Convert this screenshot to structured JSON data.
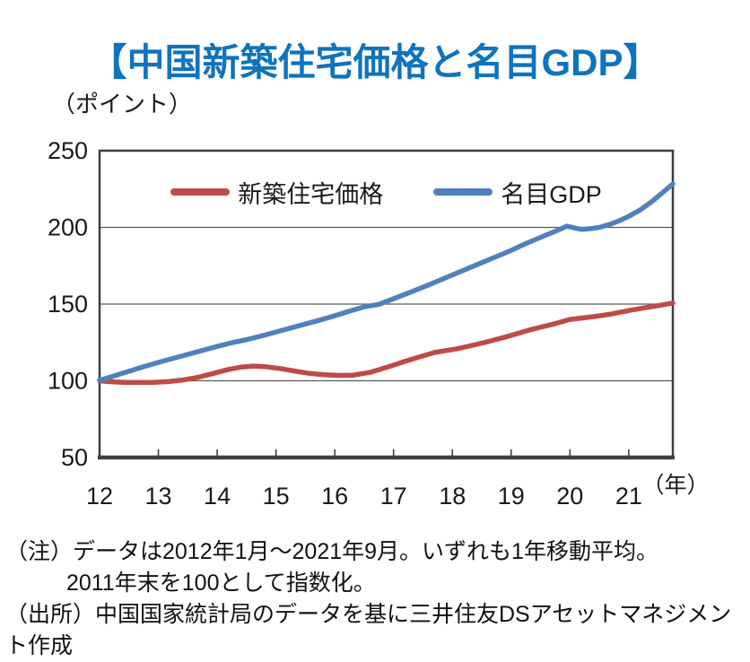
{
  "title": "【中国新築住宅価格と名目GDP】",
  "unit_label": "（ポイント）",
  "year_label": "（年）",
  "notes": {
    "line1": "（注）データは2012年1月～2021年9月。いずれも1年移動平均。",
    "line2": "2011年末を100として指数化。",
    "line3": "（出所）中国国家統計局のデータを基に三井住友DSアセットマネジメント作成"
  },
  "colors": {
    "title": "#0F73BE",
    "housing": "#BE4B48",
    "gdp": "#4F81BD",
    "frame": "#3F3F3F",
    "grid": "#595959",
    "text": "#1a1a1a"
  },
  "chart_data": {
    "type": "line",
    "title": "中国新築住宅価格と名目GDP",
    "xlabel": "年",
    "ylabel": "ポイント",
    "ylim": [
      50,
      250
    ],
    "xlim": [
      12,
      21.75
    ],
    "yticks": [
      50,
      100,
      150,
      200,
      250
    ],
    "xticks": [
      12,
      13,
      14,
      15,
      16,
      17,
      18,
      19,
      20,
      21
    ],
    "grid": "horizontal",
    "legend_position": "top-inside",
    "series": [
      {
        "name": "新築住宅価格",
        "color": "#BE4B48",
        "points": [
          [
            12.0,
            100
          ],
          [
            12.17,
            99.4
          ],
          [
            12.42,
            99.0
          ],
          [
            12.67,
            98.9
          ],
          [
            12.92,
            99.0
          ],
          [
            13.17,
            99.5
          ],
          [
            13.42,
            100.5
          ],
          [
            13.67,
            102.2
          ],
          [
            13.92,
            104.6
          ],
          [
            14.17,
            107.2
          ],
          [
            14.42,
            109.0
          ],
          [
            14.62,
            109.6
          ],
          [
            14.82,
            109.2
          ],
          [
            15.07,
            108.0
          ],
          [
            15.32,
            106.3
          ],
          [
            15.57,
            104.8
          ],
          [
            15.82,
            103.9
          ],
          [
            16.07,
            103.5
          ],
          [
            16.32,
            103.7
          ],
          [
            16.6,
            105.5
          ],
          [
            16.9,
            109.0
          ],
          [
            17.3,
            114.0
          ],
          [
            17.7,
            118.5
          ],
          [
            18.1,
            121.0
          ],
          [
            18.5,
            124.5
          ],
          [
            18.9,
            128.5
          ],
          [
            19.3,
            133.0
          ],
          [
            19.7,
            136.8
          ],
          [
            20.0,
            140.0
          ],
          [
            20.4,
            141.8
          ],
          [
            20.7,
            143.5
          ],
          [
            21.0,
            145.8
          ],
          [
            21.3,
            147.8
          ],
          [
            21.55,
            149.3
          ],
          [
            21.75,
            150.7
          ]
        ]
      },
      {
        "name": "名目GDP",
        "color": "#4F81BD",
        "points": [
          [
            12.0,
            100.3
          ],
          [
            12.25,
            103.2
          ],
          [
            12.5,
            106.2
          ],
          [
            12.75,
            109.2
          ],
          [
            13.0,
            112.0
          ],
          [
            13.25,
            114.6
          ],
          [
            13.5,
            117.2
          ],
          [
            13.75,
            119.8
          ],
          [
            14.0,
            122.4
          ],
          [
            14.25,
            124.8
          ],
          [
            14.5,
            126.8
          ],
          [
            14.75,
            129.2
          ],
          [
            15.0,
            131.8
          ],
          [
            15.25,
            134.4
          ],
          [
            15.5,
            137.0
          ],
          [
            15.75,
            139.6
          ],
          [
            16.0,
            142.4
          ],
          [
            16.25,
            145.4
          ],
          [
            16.5,
            148.2
          ],
          [
            16.75,
            149.8
          ],
          [
            17.0,
            153.5
          ],
          [
            17.25,
            157.2
          ],
          [
            17.5,
            161.0
          ],
          [
            17.75,
            165.0
          ],
          [
            18.0,
            169.0
          ],
          [
            18.25,
            173.0
          ],
          [
            18.5,
            177.0
          ],
          [
            18.75,
            181.0
          ],
          [
            19.0,
            185.0
          ],
          [
            19.25,
            189.5
          ],
          [
            19.5,
            193.5
          ],
          [
            19.75,
            197.5
          ],
          [
            19.95,
            200.8
          ],
          [
            20.1,
            199.5
          ],
          [
            20.2,
            198.7
          ],
          [
            20.35,
            199.2
          ],
          [
            20.5,
            200.0
          ],
          [
            20.7,
            202.3
          ],
          [
            20.85,
            204.5
          ],
          [
            21.0,
            207.2
          ],
          [
            21.2,
            211.5
          ],
          [
            21.4,
            217.0
          ],
          [
            21.6,
            223.5
          ],
          [
            21.75,
            228.3
          ]
        ]
      }
    ]
  }
}
